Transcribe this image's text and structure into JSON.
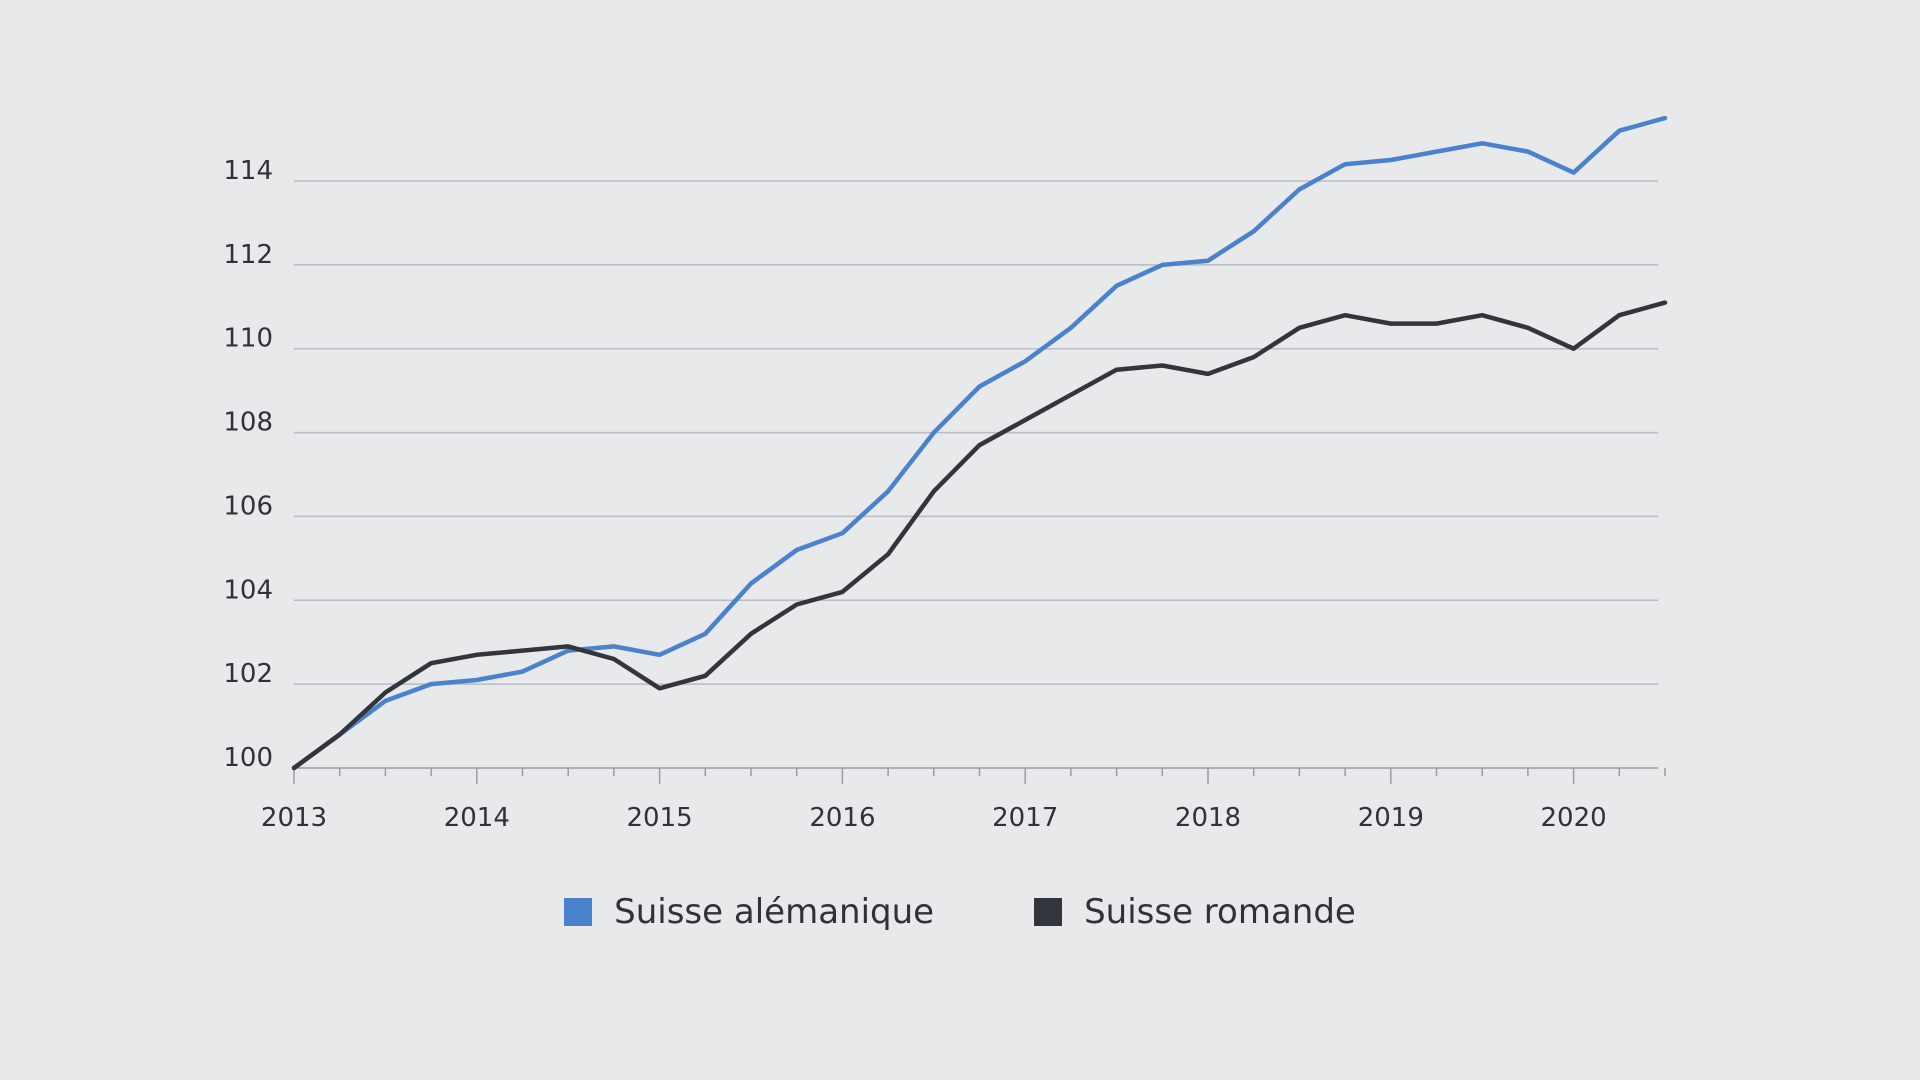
{
  "chart_data": {
    "type": "line",
    "title": "",
    "xlabel": "",
    "ylabel": "",
    "xlim": [
      2013,
      2020.5
    ],
    "ylim": [
      100,
      115.5
    ],
    "x_ticks": [
      2013,
      2014,
      2015,
      2016,
      2017,
      2018,
      2019,
      2020
    ],
    "x_tick_labels": [
      "2013",
      "2014",
      "2015",
      "2016",
      "2017",
      "2018",
      "2019",
      "2020"
    ],
    "y_ticks": [
      100,
      102,
      104,
      106,
      108,
      110,
      112,
      114
    ],
    "y_tick_labels": [
      "100",
      "102",
      "104",
      "106",
      "108",
      "110",
      "112",
      "114"
    ],
    "grid": true,
    "legend_position": "bottom-center",
    "x": [
      2013,
      2013.25,
      2013.5,
      2013.75,
      2014,
      2014.25,
      2014.5,
      2014.75,
      2015,
      2015.25,
      2015.5,
      2015.75,
      2016,
      2016.25,
      2016.5,
      2016.75,
      2017,
      2017.25,
      2017.5,
      2017.75,
      2018,
      2018.25,
      2018.5,
      2018.75,
      2019,
      2019.25,
      2019.5,
      2019.75,
      2020,
      2020.25,
      2020.5
    ],
    "series": [
      {
        "name": "Suisse alémanique",
        "color": "#4a82cd",
        "values": [
          100.0,
          100.8,
          101.6,
          102.0,
          102.1,
          102.3,
          102.8,
          102.9,
          102.7,
          103.2,
          104.4,
          105.2,
          105.6,
          106.6,
          108.0,
          109.1,
          109.7,
          110.5,
          111.5,
          112.0,
          112.1,
          112.8,
          113.8,
          114.4,
          114.5,
          114.7,
          114.9,
          114.7,
          114.2,
          115.2,
          115.5
        ]
      },
      {
        "name": "Suisse romande",
        "color": "#32353b",
        "values": [
          100.0,
          100.8,
          101.8,
          102.5,
          102.7,
          102.8,
          102.9,
          102.6,
          101.9,
          102.2,
          103.2,
          103.9,
          104.2,
          105.1,
          106.6,
          107.7,
          108.3,
          108.9,
          109.5,
          109.6,
          109.4,
          109.8,
          110.5,
          110.8,
          110.6,
          110.6,
          110.8,
          110.5,
          110.0,
          110.8,
          111.1
        ]
      }
    ]
  }
}
